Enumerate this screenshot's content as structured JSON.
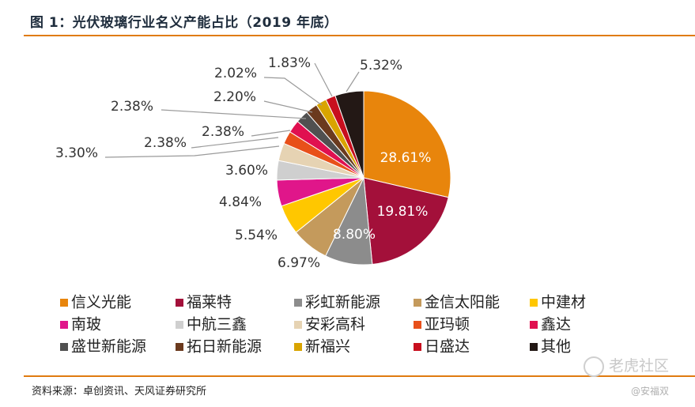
{
  "header": {
    "title": "图 1：光伏玻璃行业名义产能占比（2019 年底）"
  },
  "footer": {
    "source": "资料来源：卓创资讯、天风证券研究所"
  },
  "watermark": {
    "text": "老虎社区",
    "credit": "@安福双"
  },
  "chart_data": {
    "type": "pie",
    "title": "图 1：光伏玻璃行业名义产能占比（2019 年底）",
    "unit": "%",
    "slices": [
      {
        "name": "信义光能",
        "value": 28.61,
        "label": "28.61%",
        "color": "#E8850C"
      },
      {
        "name": "福莱特",
        "value": 19.81,
        "label": "19.81%",
        "color": "#A3103A"
      },
      {
        "name": "彩虹新能源",
        "value": 8.8,
        "label": "8.80%",
        "color": "#8C8C8C"
      },
      {
        "name": "金信太阳能",
        "value": 6.97,
        "label": "6.97%",
        "color": "#C49A5C"
      },
      {
        "name": "中建材",
        "value": 5.54,
        "label": "5.54%",
        "color": "#FFC700"
      },
      {
        "name": "南玻",
        "value": 4.84,
        "label": "4.84%",
        "color": "#E0168A"
      },
      {
        "name": "中航三鑫",
        "value": 3.6,
        "label": "3.60%",
        "color": "#CFCFCF"
      },
      {
        "name": "安彩高科",
        "value": 3.3,
        "label": "3.30%",
        "color": "#E6D3B3"
      },
      {
        "name": "亚玛顿",
        "value": 2.38,
        "label": "2.38%",
        "color": "#E8501A"
      },
      {
        "name": "鑫达",
        "value": 2.38,
        "label": "2.38%",
        "color": "#E01050"
      },
      {
        "name": "盛世新能源",
        "value": 2.38,
        "label": "2.38%",
        "color": "#505050"
      },
      {
        "name": "拓日新能源",
        "value": 2.2,
        "label": "2.20%",
        "color": "#6B3A1E"
      },
      {
        "name": "新福兴",
        "value": 2.02,
        "label": "2.02%",
        "color": "#D9A400"
      },
      {
        "name": "日盛达",
        "value": 1.83,
        "label": "1.83%",
        "color": "#C80F1E"
      },
      {
        "name": "其他",
        "value": 5.32,
        "label": "5.32%",
        "color": "#231815"
      }
    ],
    "legend": [
      "信义光能",
      "福莱特",
      "彩虹新能源",
      "金信太阳能",
      "中建材",
      "南玻",
      "中航三鑫",
      "安彩高科",
      "亚玛顿",
      "鑫达",
      "盛世新能源",
      "拓日新能源",
      "新福兴",
      "日盛达",
      "其他"
    ],
    "legend_position": "bottom"
  }
}
